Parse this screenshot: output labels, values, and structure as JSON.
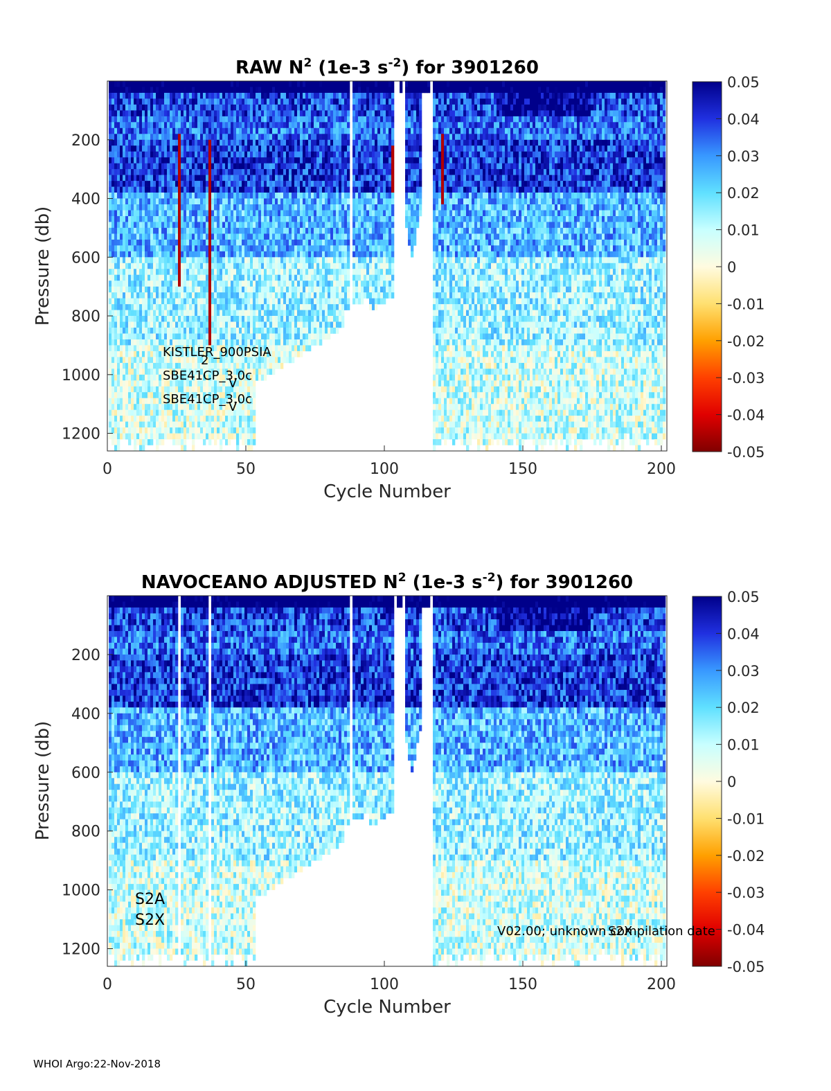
{
  "footer": "WHOI Argo:22-Nov-2018",
  "colormap": [
    "#800000",
    "#e00000",
    "#ff4000",
    "#ffa000",
    "#ffe070",
    "#fffbe0",
    "#c8ffff",
    "#60e0ff",
    "#3898ff",
    "#2030e0",
    "#00008a"
  ],
  "chart_data": [
    {
      "type": "heatmap",
      "title_parts": [
        "RAW N",
        "2",
        " (1e-3 s",
        "-2",
        ") for 3901260"
      ],
      "xlabel": "Cycle Number",
      "ylabel": "Pressure (db)",
      "xlim": [
        0,
        202
      ],
      "ylim": [
        1260,
        0
      ],
      "xticks": [
        0,
        50,
        100,
        150,
        200
      ],
      "yticks": [
        200,
        400,
        600,
        800,
        1000,
        1200
      ],
      "clim": [
        -0.05,
        0.05
      ],
      "colorbar_ticks": [
        "0.05",
        "0.04",
        "0.03",
        "0.02",
        "0.01",
        "0",
        "-0.01",
        "-0.02",
        "-0.03",
        "-0.04",
        "-0.05"
      ],
      "annotations": [
        {
          "text": "KISTLER_900PSIA",
          "sub": "2"
        },
        {
          "text": "SBE41CP_3.0c",
          "sub": "V"
        },
        {
          "text": "SBE41CP_3.0c",
          "sub": "V"
        }
      ]
    },
    {
      "type": "heatmap",
      "title_parts": [
        "NAVOCEANO  ADJUSTED N",
        "2",
        " (1e-3 s",
        "-2",
        ") for 3901260"
      ],
      "xlabel": "Cycle Number",
      "ylabel": "Pressure (db)",
      "xlim": [
        0,
        202
      ],
      "ylim": [
        1260,
        0
      ],
      "xticks": [
        0,
        50,
        100,
        150,
        200
      ],
      "yticks": [
        200,
        400,
        600,
        800,
        1000,
        1200
      ],
      "clim": [
        -0.05,
        0.05
      ],
      "colorbar_ticks": [
        "0.05",
        "0.04",
        "0.03",
        "0.02",
        "0.01",
        "0",
        "-0.01",
        "-0.02",
        "-0.03",
        "-0.04",
        "-0.05"
      ],
      "annotations": [
        {
          "text": "S2A"
        },
        {
          "text": "S2X"
        },
        {
          "text": "V02.00; unknown compilation date"
        },
        {
          "text": "S2X"
        }
      ]
    }
  ]
}
